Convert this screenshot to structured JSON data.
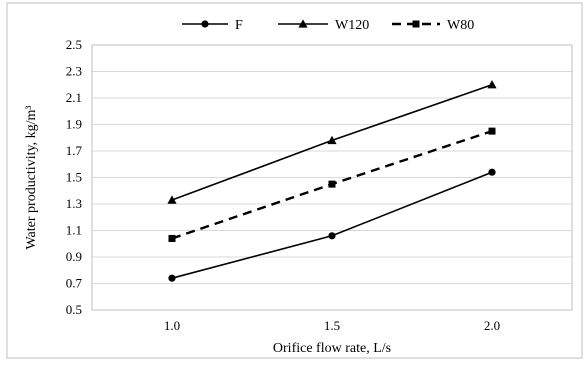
{
  "chart_data": {
    "type": "line",
    "categories": [
      "1.0",
      "1.5",
      "2.0"
    ],
    "series": [
      {
        "name": "F",
        "values": [
          0.74,
          1.06,
          1.54
        ],
        "marker": "circle",
        "dash": "solid",
        "color": "#000000"
      },
      {
        "name": "W120",
        "values": [
          1.33,
          1.78,
          2.2
        ],
        "marker": "triangle",
        "dash": "solid",
        "color": "#000000"
      },
      {
        "name": "W80",
        "values": [
          1.04,
          1.45,
          1.85
        ],
        "marker": "square",
        "dash": "dashed",
        "color": "#000000"
      }
    ],
    "xlabel": "Orifice flow rate, L/s",
    "ylabel": "Water productivity, kg/m³",
    "ylim": [
      0.5,
      2.5
    ],
    "yticks": [
      "0.5",
      "0.7",
      "0.9",
      "1.1",
      "1.3",
      "1.5",
      "1.7",
      "1.9",
      "2.1",
      "2.3",
      "2.5"
    ],
    "grid": true,
    "legend": "top-center"
  }
}
